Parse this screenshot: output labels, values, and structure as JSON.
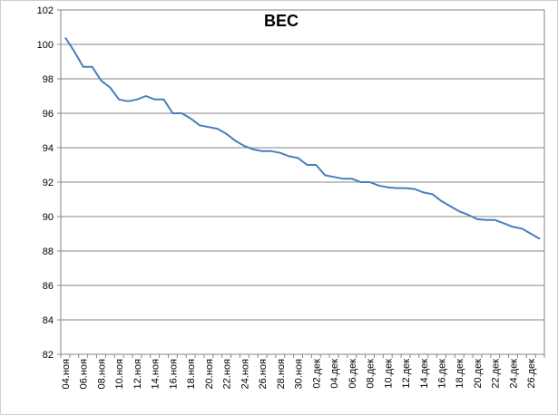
{
  "chart_data": {
    "type": "line",
    "title": "ВЕС",
    "xlabel": "",
    "ylabel": "",
    "ylim": [
      82,
      102
    ],
    "y_ticks": [
      82,
      84,
      86,
      88,
      90,
      92,
      94,
      96,
      98,
      100,
      102
    ],
    "grid": "horizontal",
    "legend": "none",
    "line_color": "#4a7ebb",
    "x_labels": [
      "04.ноя",
      "06.ноя",
      "08.ноя",
      "10.ноя",
      "12.ноя",
      "14.ноя",
      "16.ноя",
      "18.ноя",
      "20.ноя",
      "22.ноя",
      "24.ноя",
      "26.ноя",
      "28.ноя",
      "30.ноя",
      "02.дек",
      "04.дек",
      "06.дек",
      "08.дек",
      "10.дек",
      "12.дек",
      "14.дек",
      "16.дек",
      "18.дек",
      "20.дек",
      "22.дек",
      "24.дек",
      "26.дек"
    ],
    "x": [
      "04.ноя",
      "05.ноя",
      "06.ноя",
      "07.ноя",
      "08.ноя",
      "09.ноя",
      "10.ноя",
      "11.ноя",
      "12.ноя",
      "13.ноя",
      "14.ноя",
      "15.ноя",
      "16.ноя",
      "17.ноя",
      "18.ноя",
      "19.ноя",
      "20.ноя",
      "21.ноя",
      "22.ноя",
      "23.ноя",
      "24.ноя",
      "25.ноя",
      "26.ноя",
      "27.ноя",
      "28.ноя",
      "29.ноя",
      "30.ноя",
      "01.дек",
      "02.дек",
      "03.дек",
      "04.дек",
      "05.дек",
      "06.дек",
      "07.дек",
      "08.дек",
      "09.дек",
      "10.дек",
      "11.дек",
      "12.дек",
      "13.дек",
      "14.дек",
      "15.дек",
      "16.дек",
      "17.дек",
      "18.дек",
      "19.дек",
      "20.дек",
      "21.дек",
      "22.дек",
      "23.дек",
      "24.дек",
      "25.дек",
      "26.дек",
      "27.дек"
    ],
    "values": [
      100.4,
      99.6,
      98.7,
      98.7,
      97.9,
      97.5,
      96.8,
      96.7,
      96.8,
      97.0,
      96.8,
      96.8,
      96.0,
      96.0,
      95.7,
      95.3,
      95.2,
      95.1,
      94.8,
      94.4,
      94.1,
      93.9,
      93.8,
      93.8,
      93.7,
      93.5,
      93.4,
      93.0,
      93.0,
      92.4,
      92.3,
      92.2,
      92.2,
      92.0,
      92.0,
      91.8,
      91.7,
      91.65,
      91.65,
      91.6,
      91.4,
      91.3,
      90.9,
      90.6,
      90.3,
      90.1,
      89.85,
      89.8,
      89.8,
      89.6,
      89.4,
      89.3,
      89.0,
      88.7
    ]
  }
}
